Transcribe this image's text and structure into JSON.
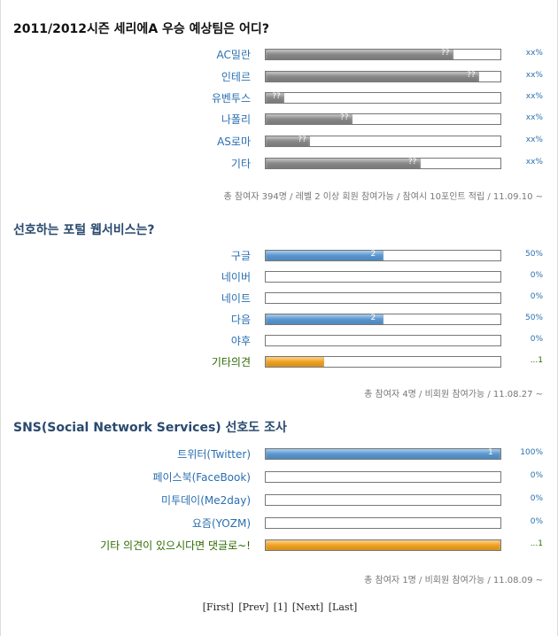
{
  "polls": [
    {
      "title": "2011/2012시즌 세리에A 우승 예상팀은 어디?",
      "title_color": "#111111",
      "options": [
        {
          "label": "AC밀란",
          "bar_label": "??",
          "bar_percent": 80,
          "result": "xx%",
          "color": "#8c8c8c"
        },
        {
          "label": "인테르",
          "bar_label": "??",
          "bar_percent": 91,
          "result": "xx%",
          "color": "#8c8c8c"
        },
        {
          "label": "유벤투스",
          "bar_label": "??",
          "bar_percent": 8,
          "result": "xx%",
          "color": "#8c8c8c"
        },
        {
          "label": "나폴리",
          "bar_label": "??",
          "bar_percent": 37,
          "result": "xx%",
          "color": "#8c8c8c"
        },
        {
          "label": "AS로마",
          "bar_label": "??",
          "bar_percent": 19,
          "result": "xx%",
          "color": "#8c8c8c"
        },
        {
          "label": "기타",
          "bar_label": "??",
          "bar_percent": 66,
          "result": "xx%",
          "color": "#8c8c8c"
        }
      ],
      "footer": "총 참여자 394명 / 레벨 2 이상 회원 참여가능 / 참여시 10포인트 적립 / 11.09.10 ~"
    },
    {
      "title": "선호하는 포털 웹서비스는?",
      "title_color": "#2a4a6e",
      "options": [
        {
          "label": "구글",
          "bar_label": "2",
          "bar_percent": 50,
          "result": "50%",
          "color": "#5b9bd5"
        },
        {
          "label": "네이버",
          "bar_label": null,
          "bar_percent": 0,
          "result": "0%",
          "color": "#5b9bd5"
        },
        {
          "label": "네이트",
          "bar_label": null,
          "bar_percent": 0,
          "result": "0%",
          "color": "#5b9bd5"
        },
        {
          "label": "다음",
          "bar_label": "2",
          "bar_percent": 50,
          "result": "50%",
          "color": "#5b9bd5"
        },
        {
          "label": "야후",
          "bar_label": null,
          "bar_percent": 0,
          "result": "0%",
          "color": "#5b9bd5"
        },
        {
          "label": "기타의견",
          "bar_label": null,
          "bar_percent": 25,
          "result": "...1",
          "color": "#f5a623"
        }
      ],
      "footer": "총 참여자 4명 / 비회원 참여가능 / 11.08.27 ~"
    },
    {
      "title": "SNS(Social Network Services) 선호도 조사",
      "title_color": "#2a4a6e",
      "options": [
        {
          "label": "트위터(Twitter)",
          "bar_label": "1",
          "bar_percent": 100,
          "result": "100%",
          "color": "#5b9bd5"
        },
        {
          "label": "페이스북(FaceBook)",
          "bar_label": null,
          "bar_percent": 0,
          "result": "0%",
          "color": "#5b9bd5"
        },
        {
          "label": "미투데이(Me2day)",
          "bar_label": null,
          "bar_percent": 0,
          "result": "0%",
          "color": "#5b9bd5"
        },
        {
          "label": "요즘(YOZM)",
          "bar_label": null,
          "bar_percent": 0,
          "result": "0%",
          "color": "#5b9bd5"
        },
        {
          "label": "기타 의견이 있으시다면 댓글로~!",
          "bar_label": null,
          "bar_percent": 100,
          "result": "...1",
          "color": "#f5a623"
        }
      ],
      "footer": "총 참여자 1명 / 비회원 참여가능 / 11.08.09 ~"
    }
  ],
  "pagination": [
    "[First]",
    "[Prev]",
    "[1]",
    "[Next]",
    "[Last]"
  ]
}
